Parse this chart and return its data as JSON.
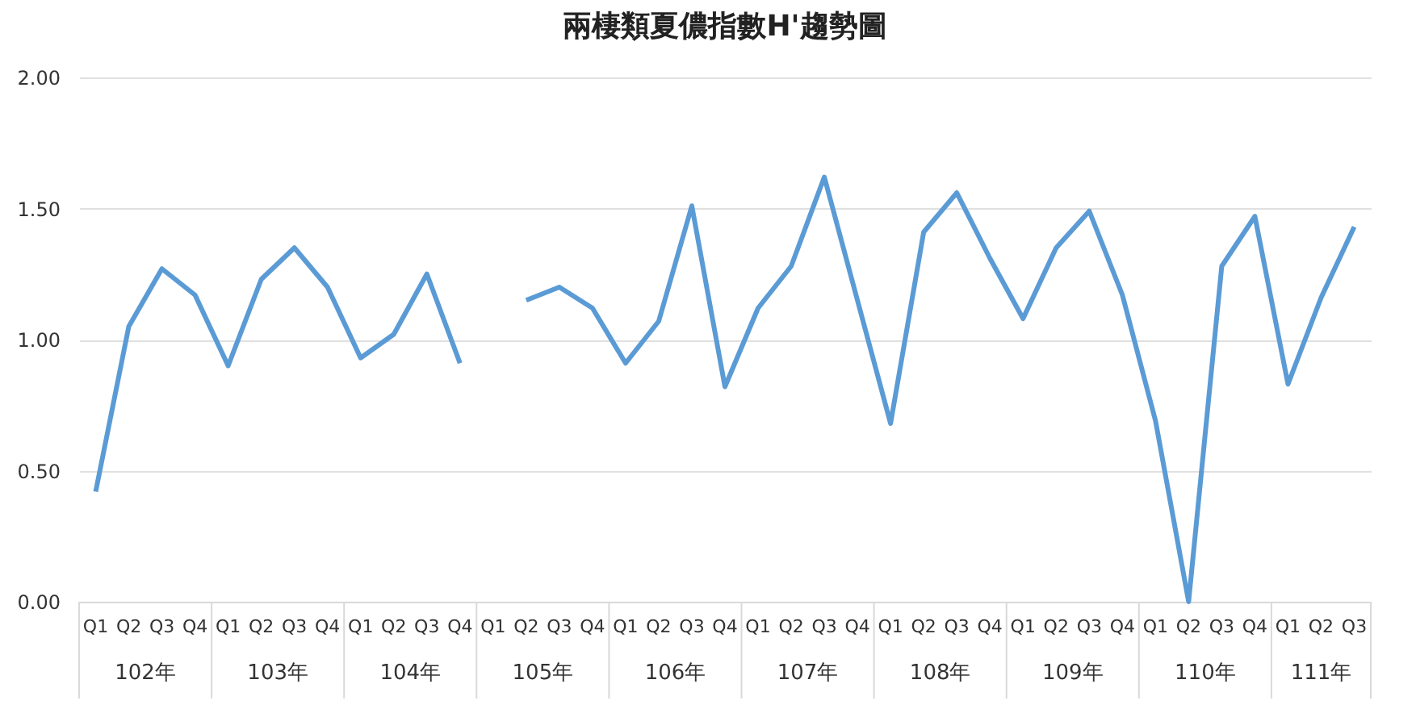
{
  "chart_data": {
    "type": "line",
    "title": "兩棲類夏儂指數H'趨勢圖",
    "categories": [
      "Q1",
      "Q2",
      "Q3",
      "Q4",
      "Q1",
      "Q2",
      "Q3",
      "Q4",
      "Q1",
      "Q2",
      "Q3",
      "Q4",
      "Q1",
      "Q2",
      "Q3",
      "Q4",
      "Q1",
      "Q2",
      "Q3",
      "Q4",
      "Q1",
      "Q2",
      "Q3",
      "Q4",
      "Q1",
      "Q2",
      "Q3",
      "Q4",
      "Q1",
      "Q2",
      "Q3",
      "Q4",
      "Q1",
      "Q2",
      "Q3",
      "Q4",
      "Q1",
      "Q2",
      "Q3"
    ],
    "series": [
      {
        "color": "#5b9bd5",
        "values": [
          0.42,
          1.05,
          1.27,
          1.17,
          0.9,
          1.23,
          1.35,
          1.2,
          0.93,
          1.02,
          1.25,
          0.91,
          null,
          1.15,
          1.2,
          1.12,
          0.91,
          1.07,
          1.51,
          0.82,
          1.12,
          1.28,
          1.62,
          1.15,
          0.68,
          1.41,
          1.56,
          1.31,
          1.08,
          1.35,
          1.49,
          1.17,
          0.69,
          0.0,
          1.28,
          1.47,
          0.83,
          1.16,
          1.43
        ]
      }
    ],
    "annotations": [
      "102年",
      "103年",
      "104年",
      "105年",
      "106年",
      "107年",
      "108年",
      "109年",
      "110年",
      "111年"
    ],
    "ylim": [
      0,
      2
    ],
    "yticks": [
      {
        "value": 0,
        "label": "0.00"
      },
      {
        "value": 0.5,
        "label": "0.50"
      },
      {
        "value": 1,
        "label": "1.00"
      },
      {
        "value": 1.5,
        "label": "1.50"
      },
      {
        "value": 2,
        "label": "2.00"
      }
    ],
    "grid": "y",
    "marker": "none",
    "line_style": "solid"
  }
}
